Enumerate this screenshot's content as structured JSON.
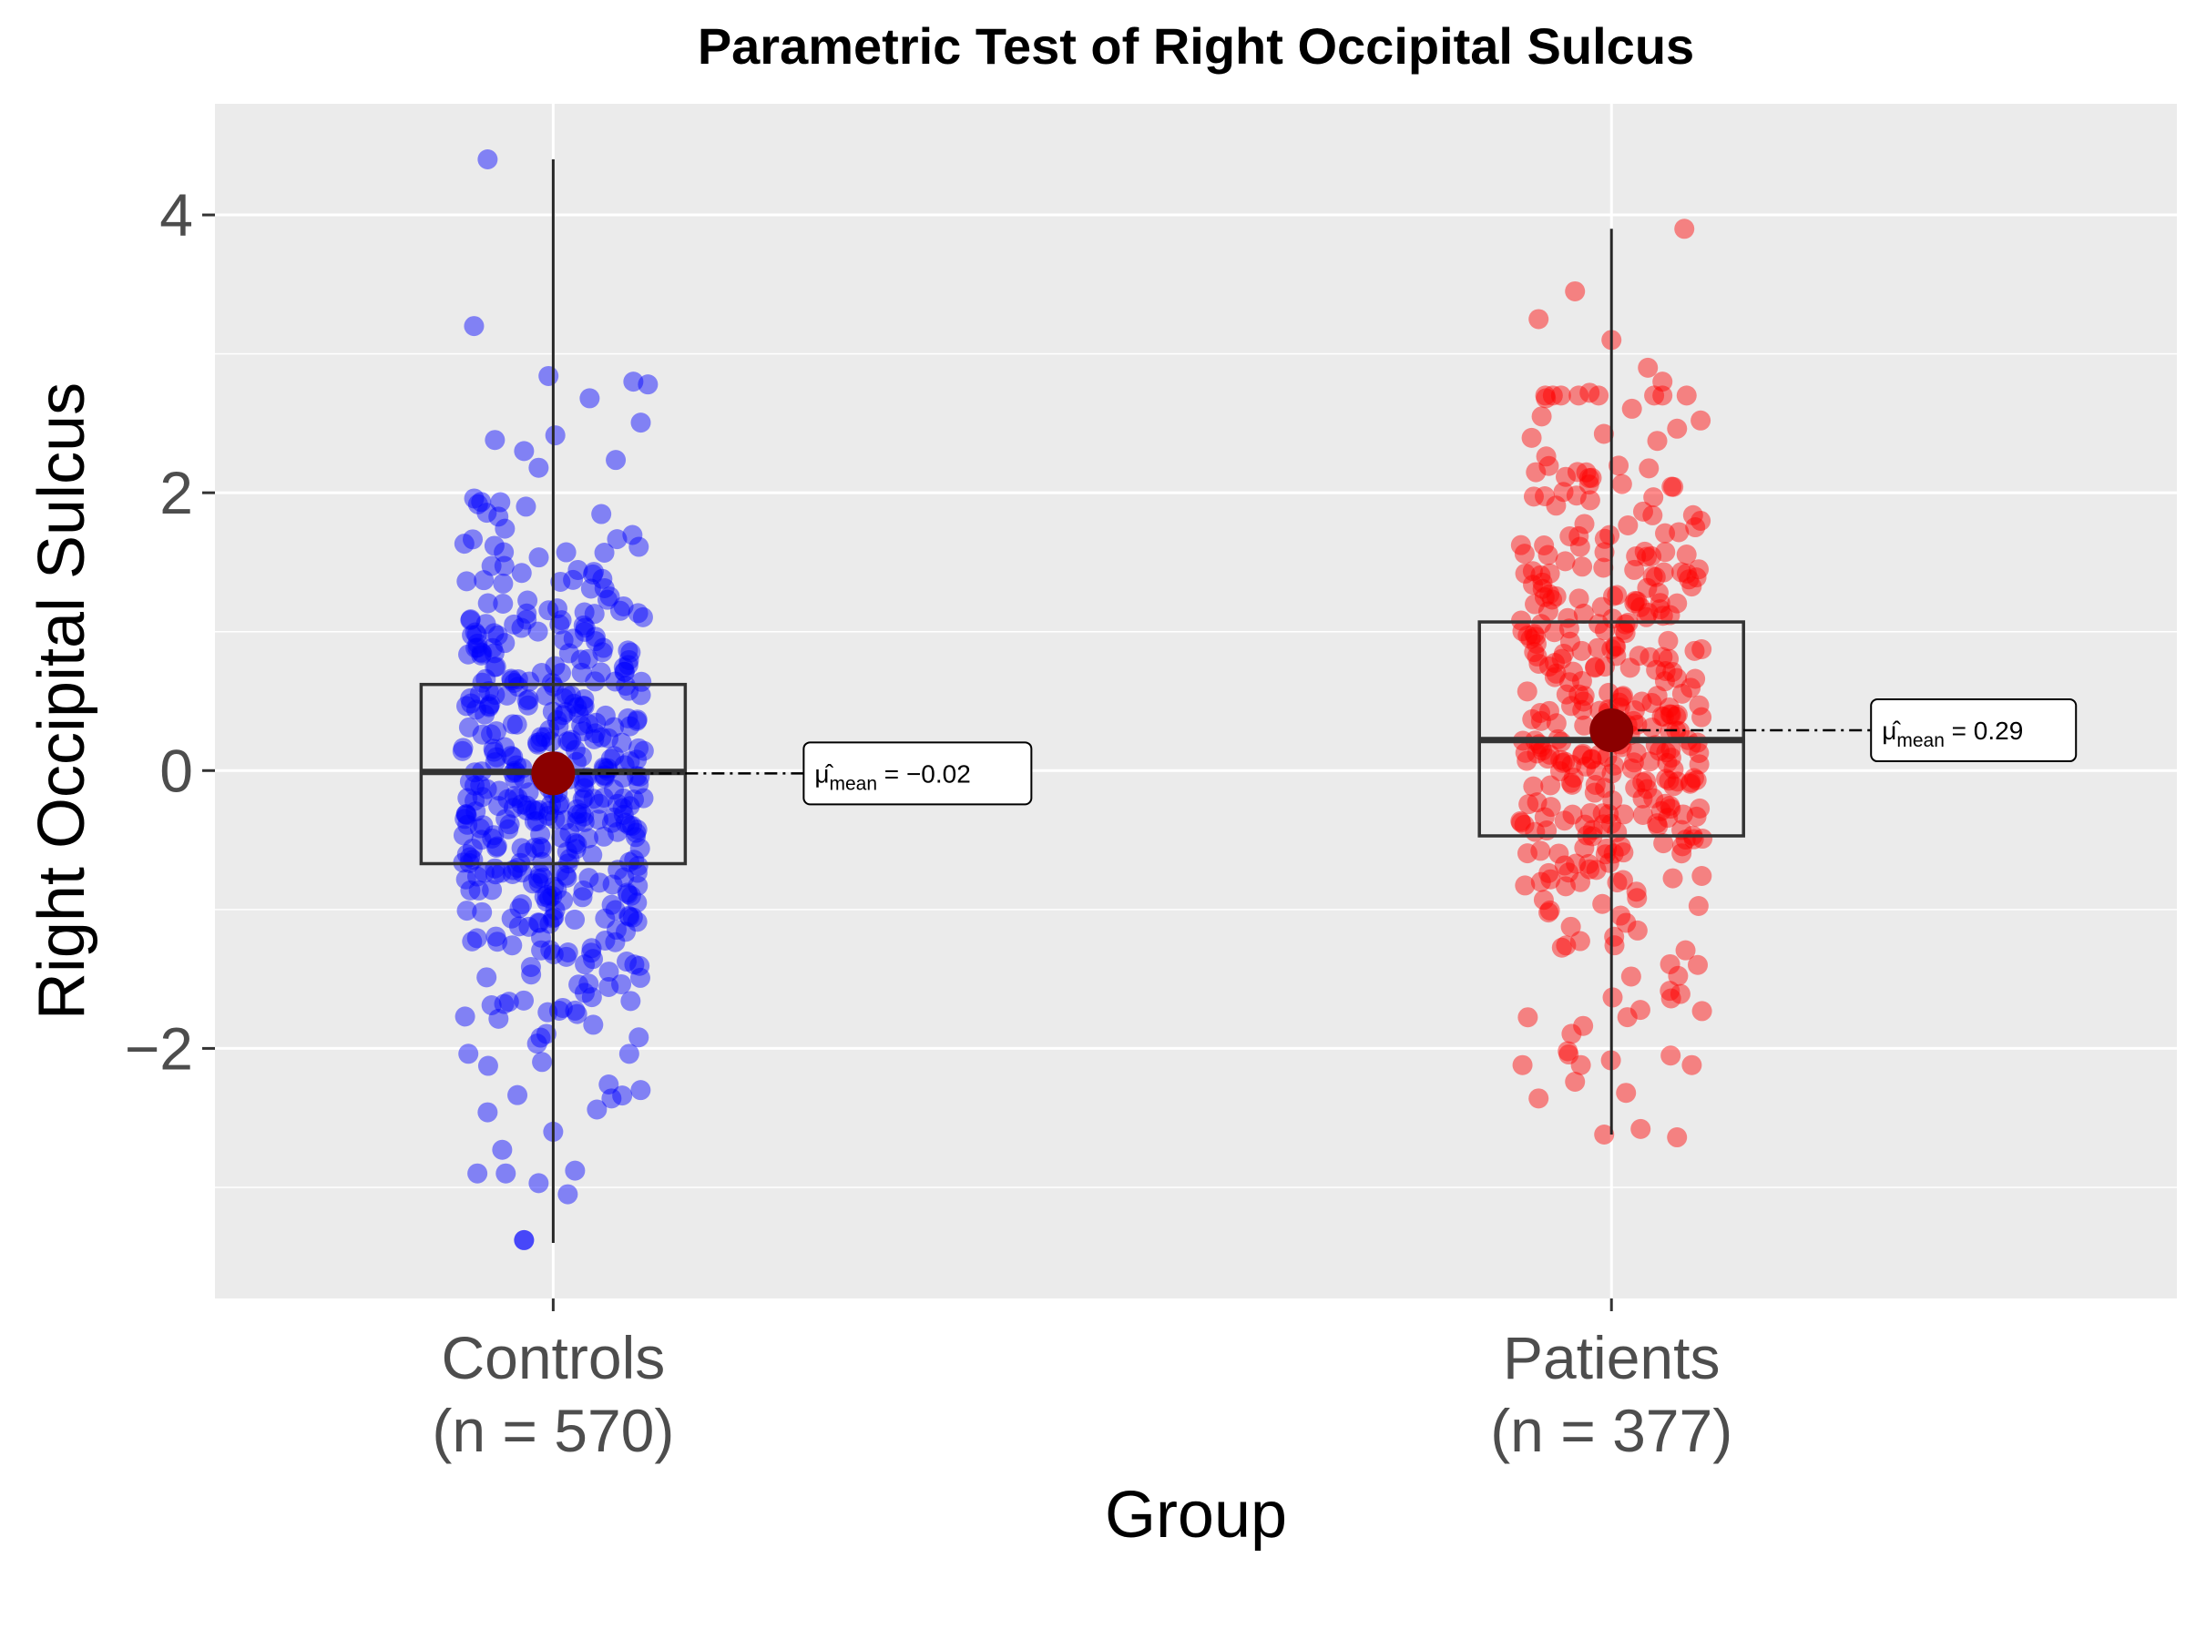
{
  "chart_data": {
    "type": "box",
    "title": "Parametric Test of Right Occipital Sulcus",
    "xlabel": "Group",
    "ylabel": "Right Occipital Sulcus",
    "ylim": [
      -3.8,
      4.8
    ],
    "y_ticks": [
      -2,
      0,
      2,
      4
    ],
    "y_tick_labels": [
      "−2",
      "0",
      "2",
      "4"
    ],
    "grid": true,
    "background": "#ebebeb",
    "groups": [
      {
        "name": "Controls",
        "n_label": "(n = 570)",
        "n": 570,
        "color": "#0000ff",
        "box": {
          "whisker_low": -3.4,
          "q1": -0.67,
          "median": -0.01,
          "q3": 0.62,
          "whisker_high": 4.4
        },
        "mean": -0.02,
        "annotation": {
          "symbol": "μ̂",
          "subscript": "mean",
          "value": "= −0.02"
        },
        "outlier_points": [
          [
            -0.09,
            4.4
          ],
          [
            0.05,
            2.68
          ],
          [
            0.11,
            2.8
          ],
          [
            0.13,
            2.78
          ],
          [
            -0.08,
            2.38
          ],
          [
            -0.04,
            2.3
          ],
          [
            -0.02,
            2.18
          ],
          [
            -3.38,
            -0.04
          ]
        ],
        "extreme_points": [
          [
            -0.04,
            -3.38
          ],
          [
            -0.02,
            -2.97
          ],
          [
            0.03,
            -2.88
          ],
          [
            0.02,
            -3.05
          ],
          [
            -0.07,
            -2.73
          ],
          [
            -0.09,
            -2.46
          ],
          [
            0.0,
            -2.6
          ],
          [
            0.06,
            -2.44
          ],
          [
            0.08,
            -2.36
          ],
          [
            0.12,
            -2.3
          ]
        ]
      },
      {
        "name": "Patients",
        "n_label": "(n = 377)",
        "n": 377,
        "color": "#ff0000",
        "box": {
          "whisker_low": -2.62,
          "q1": -0.47,
          "median": 0.22,
          "q3": 1.07,
          "whisker_high": 3.9
        },
        "mean": 0.29,
        "annotation": {
          "symbol": "μ̂",
          "subscript": "mean",
          "value": "= 0.29"
        },
        "outlier_points": [
          [
            0.1,
            3.9
          ],
          [
            -0.05,
            3.45
          ],
          [
            0.0,
            3.1
          ],
          [
            -0.1,
            3.25
          ],
          [
            0.05,
            2.9
          ],
          [
            0.07,
            2.8
          ],
          [
            -0.03,
            2.72
          ],
          [
            -0.09,
            2.68
          ]
        ],
        "extreme_points": [
          [
            -0.01,
            -2.62
          ],
          [
            0.04,
            -2.58
          ],
          [
            0.09,
            -2.64
          ],
          [
            -0.1,
            -2.36
          ],
          [
            0.02,
            -2.32
          ],
          [
            -0.05,
            -2.24
          ],
          [
            -0.06,
            -2.02
          ]
        ]
      }
    ]
  }
}
